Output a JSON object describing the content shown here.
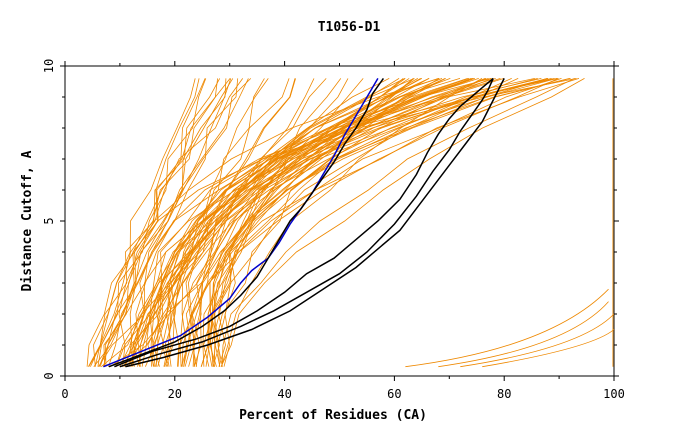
{
  "chart_data": {
    "type": "line",
    "title": "T1056-D1",
    "xlabel": "Percent of Residues (CA)",
    "ylabel": "Distance Cutoff, A",
    "xlim": [
      0,
      100
    ],
    "ylim": [
      0,
      10
    ],
    "x_ticks": [
      "0",
      "20",
      "40",
      "60",
      "80",
      "100"
    ],
    "y_ticks": [
      "0",
      "5",
      "10"
    ],
    "grid": false,
    "colors": {
      "background_models": "#ee8800",
      "highlight_blue": "#0000cc",
      "highlight_black": "#000000"
    },
    "series": [
      {
        "color": "#0000cc",
        "x": [
          7,
          14,
          21,
          26,
          30,
          32,
          34,
          37,
          39,
          41,
          43,
          45,
          47,
          49,
          51,
          53,
          55,
          57
        ],
        "y": [
          0.3,
          0.8,
          1.3,
          1.9,
          2.5,
          3.0,
          3.4,
          3.8,
          4.3,
          4.9,
          5.4,
          5.9,
          6.5,
          7.1,
          7.8,
          8.4,
          9.0,
          9.6
        ]
      },
      {
        "color": "#000000",
        "x": [
          8,
          14,
          20,
          25,
          29,
          32,
          35,
          37,
          39,
          41,
          43,
          45,
          47,
          49,
          51,
          53,
          55,
          56,
          58
        ],
        "y": [
          0.3,
          0.7,
          1.1,
          1.6,
          2.1,
          2.6,
          3.2,
          3.8,
          4.4,
          5.0,
          5.4,
          5.9,
          6.4,
          6.9,
          7.5,
          8.0,
          8.6,
          9.1,
          9.6
        ]
      },
      {
        "color": "#000000",
        "x": [
          9,
          16,
          24,
          30,
          35,
          40,
          44,
          49,
          53,
          57,
          61,
          64,
          66,
          68,
          70,
          72,
          74,
          76,
          78
        ],
        "y": [
          0.3,
          0.8,
          1.2,
          1.6,
          2.1,
          2.7,
          3.3,
          3.8,
          4.4,
          5.0,
          5.7,
          6.5,
          7.2,
          7.8,
          8.3,
          8.7,
          9.0,
          9.3,
          9.6
        ]
      },
      {
        "color": "#000000",
        "x": [
          10,
          17,
          25,
          32,
          38,
          44,
          50,
          55,
          60,
          64,
          67,
          70,
          72,
          74,
          76,
          77,
          78
        ],
        "y": [
          0.3,
          0.7,
          1.1,
          1.6,
          2.1,
          2.7,
          3.3,
          4.0,
          4.9,
          5.8,
          6.6,
          7.3,
          7.9,
          8.4,
          8.9,
          9.2,
          9.6
        ]
      },
      {
        "color": "#000000",
        "x": [
          11,
          18,
          26,
          34,
          41,
          47,
          53,
          57,
          61,
          64,
          67,
          70,
          73,
          76,
          78,
          80
        ],
        "y": [
          0.3,
          0.6,
          1.0,
          1.5,
          2.1,
          2.8,
          3.5,
          4.1,
          4.7,
          5.4,
          6.1,
          6.8,
          7.5,
          8.2,
          8.9,
          9.6
        ]
      }
    ]
  }
}
